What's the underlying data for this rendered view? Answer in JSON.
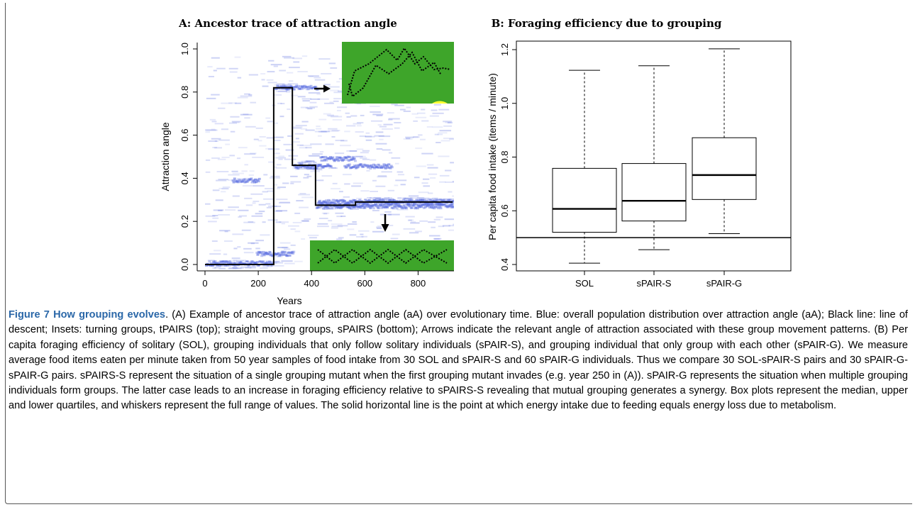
{
  "panel_a": {
    "title": "A: Ancestor trace of attraction angle",
    "xlabel": "Years",
    "ylabel": "Attraction angle",
    "xticks": [
      "0",
      "200",
      "400",
      "600",
      "800"
    ],
    "yticks": [
      "0.0",
      "0.2",
      "0.4",
      "0.6",
      "0.8",
      "1.0"
    ],
    "colors": {
      "population": "#5b6ee0",
      "lineage": "#000000",
      "inset_bg": "#3ea52a",
      "sun": "#ffff33"
    }
  },
  "panel_b": {
    "title": "B: Foraging efficiency due to grouping",
    "ylabel": "Per capita food intake (items / minute)",
    "yticks": [
      "0.4",
      "0.6",
      "0.8",
      "1.0",
      "1.2"
    ]
  },
  "chart_data": [
    {
      "type": "line",
      "title": "A: Ancestor trace of attraction angle",
      "xlabel": "Years",
      "ylabel": "Attraction angle",
      "xlim": [
        0,
        930
      ],
      "ylim": [
        0,
        1
      ],
      "series": [
        {
          "name": "Black line: line of descent",
          "x": [
            0,
            258,
            258,
            328,
            328,
            415,
            415,
            565,
            565,
            930
          ],
          "y": [
            0.0,
            0.0,
            0.82,
            0.82,
            0.46,
            0.46,
            0.275,
            0.275,
            0.29,
            0.29
          ]
        }
      ],
      "annotations": [
        {
          "label": "tPAIRS (top)",
          "arrow_at": [
            545,
            0.82
          ]
        },
        {
          "label": "sPAIRS (bottom)",
          "arrow_at": [
            678,
            0.18
          ]
        }
      ],
      "grid": false
    },
    {
      "type": "box",
      "title": "B: Foraging efficiency due to grouping",
      "ylabel": "Per capita food intake (items / minute)",
      "ylim": [
        0.38,
        1.22
      ],
      "categories": [
        "SOL",
        "sPAIR-S",
        "sPAIR-G"
      ],
      "boxes": [
        {
          "min": 0.405,
          "q1": 0.52,
          "median": 0.607,
          "q3": 0.758,
          "max": 1.123
        },
        {
          "min": 0.455,
          "q1": 0.562,
          "median": 0.637,
          "q3": 0.776,
          "max": 1.14
        },
        {
          "min": 0.515,
          "q1": 0.642,
          "median": 0.733,
          "q3": 0.872,
          "max": 1.203
        }
      ],
      "hline": 0.5,
      "grid": false
    }
  ],
  "caption": {
    "title": "Figure 7 How grouping evolves",
    "text": ". (A) Example of ancestor trace of attraction angle (aA) over evolutionary time. Blue: overall population distribution over attraction angle (aA); Black line: line of descent; Insets: turning groups, tPAIRS (top); straight moving groups, sPAIRS (bottom); Arrows indicate the relevant angle of attraction associated with these group movement patterns. (B) Per capita foraging efficiency of solitary (SOL), grouping individuals that only follow solitary individuals (sPAIR-S), and grouping individual that only group with each other (sPAIR-G). We measure average food items eaten per minute taken from 50 year samples of food intake from 30 SOL and sPAIR-S and 60 sPAIR-G individuals. Thus we compare 30 SOL-sPAIR-S pairs and 30 sPAIR-G-sPAIR-G pairs. sPAIRS-S represent the situation of a single grouping mutant when the first grouping mutant invades (e.g. year 250 in (A)). sPAIR-G represents the situation when multiple grouping individuals form groups. The latter case leads to an increase in foraging efficiency relative to sPAIRS-S revealing that mutual grouping generates a synergy. Box plots represent the median, upper and lower quartiles, and whiskers represent the full range of values. The solid horizontal line is the point at which energy intake due to feeding equals energy loss due to metabolism."
  }
}
